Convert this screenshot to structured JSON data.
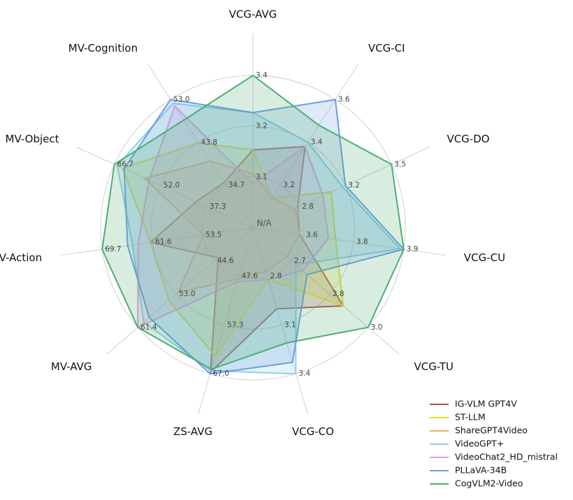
{
  "chart_data": {
    "type": "radar",
    "center_label": "N/A",
    "axes": [
      {
        "name": "VCG-AVG",
        "lim": [
          2.94,
          3.39
        ],
        "ticks": [
          {
            "value": 3.09,
            "label": "3.1"
          },
          {
            "value": 3.24,
            "label": "3.2"
          },
          {
            "value": 3.39,
            "label": "3.4"
          }
        ]
      },
      {
        "name": "VCG-CI",
        "lim": [
          3.0,
          3.6
        ],
        "ticks": [
          3.2,
          3.4,
          3.6
        ]
      },
      {
        "name": "VCG-DO",
        "lim": [
          2.51,
          3.5
        ],
        "ticks": [
          {
            "value": 2.84,
            "label": "2.8"
          },
          {
            "value": 3.17,
            "label": "3.2"
          },
          3.5
        ]
      },
      {
        "name": "VCG-CU",
        "lim": [
          3.48,
          3.9
        ],
        "ticks": [
          {
            "value": 3.62,
            "label": "3.6"
          },
          {
            "value": 3.76,
            "label": "3.8"
          },
          3.9
        ]
      },
      {
        "name": "VCG-TU",
        "lim": [
          2.49,
          3.0
        ],
        "ticks": [
          {
            "value": 2.66,
            "label": "2.7"
          },
          {
            "value": 2.83,
            "label": "2.8"
          },
          {
            "value": 3.0,
            "label": "3.0"
          }
        ]
      },
      {
        "name": "VCG-CO",
        "lim": [
          2.5,
          3.4
        ],
        "ticks": [
          2.8,
          3.1,
          3.4
        ]
      },
      {
        "name": "ZS-AVG",
        "lim": [
          37.9,
          67.0
        ],
        "ticks": [
          47.6,
          57.3,
          {
            "value": 67.0,
            "label": "67.0"
          }
        ]
      },
      {
        "name": "MV-AVG",
        "lim": [
          36.2,
          61.4
        ],
        "ticks": [
          44.6,
          {
            "value": 53.0,
            "label": "53.0"
          },
          61.4
        ]
      },
      {
        "name": "MV-Action",
        "lim": [
          45.4,
          69.7
        ],
        "ticks": [
          53.5,
          61.6,
          69.7
        ]
      },
      {
        "name": "MV-Object",
        "lim": [
          22.6,
          66.7
        ],
        "ticks": [
          37.3,
          {
            "value": 52.0,
            "label": "52.0"
          },
          66.7
        ]
      },
      {
        "name": "MV-Cognition",
        "lim": [
          25.55,
          53.0
        ],
        "ticks": [
          34.7,
          43.8,
          {
            "value": 53.0,
            "label": "53.0"
          }
        ]
      }
    ],
    "series": [
      {
        "name": "IG-VLM GPT4V",
        "color": "#b5524a",
        "values": [
          3.17,
          3.38,
          2.83,
          3.61,
          2.89,
          3.0,
          66.7,
          43.8,
          61.9,
          40.7,
          35.2
        ]
      },
      {
        "name": "ST-LLM",
        "color": "#e6dc2e",
        "values": [
          3.17,
          3.14,
          3.07,
          3.71,
          2.89,
          2.82,
          63.5,
          54.6,
          61.9,
          64.1,
          43.7
        ]
      },
      {
        "name": "ShareGPT4Video",
        "color": "#f0a860",
        "values": [
          3.1,
          3.14,
          2.81,
          3.61,
          2.64,
          2.77,
          48.1,
          52.6,
          53.4,
          57.0,
          39.8
        ]
      },
      {
        "name": "VideoGPT+",
        "color": "#8ecfe8",
        "values": [
          3.28,
          3.4,
          3.15,
          3.89,
          2.68,
          3.4,
          66.4,
          60.1,
          64.8,
          65.8,
          52.2
        ]
      },
      {
        "name": "VideoChat2_HD_mistral",
        "color": "#e0a0d4",
        "values": [
          3.07,
          3.38,
          3.01,
          3.69,
          2.71,
          2.82,
          48.7,
          61.4,
          63.9,
          55.7,
          51.6
        ]
      },
      {
        "name": "PLLaVA-34B",
        "color": "#6a9ee0",
        "values": [
          3.28,
          3.6,
          3.17,
          3.9,
          2.73,
          3.33,
          67.0,
          58.9,
          65.6,
          63.6,
          53.0
        ]
      },
      {
        "name": "CogVLM2-Video",
        "color": "#4caf72",
        "values": [
          3.39,
          3.48,
          3.5,
          3.9,
          3.0,
          3.21,
          66.1,
          61.4,
          69.7,
          66.7,
          48.6
        ]
      }
    ],
    "legend": "lower right"
  }
}
